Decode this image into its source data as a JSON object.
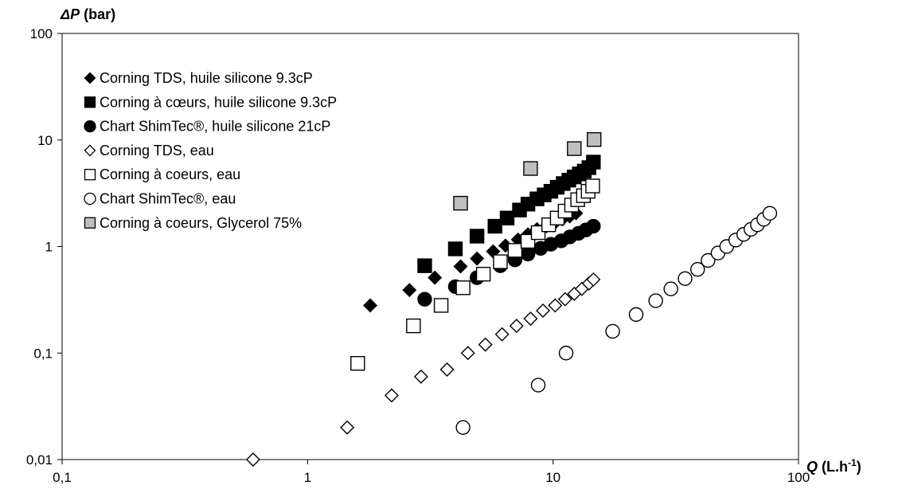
{
  "chart_data": {
    "type": "scatter",
    "title": "",
    "xlabel": {
      "symbol": "Q",
      "unit_main": " (L.h",
      "unit_sup": "-1",
      "unit_end": ")"
    },
    "ylabel": {
      "symbol": "ΔP",
      "unit": " (bar)"
    },
    "xscale": "log",
    "yscale": "log",
    "xlim": [
      0.1,
      100
    ],
    "ylim": [
      0.01,
      100
    ],
    "x_ticks": [
      {
        "v": 0.1,
        "label": "0,1"
      },
      {
        "v": 1,
        "label": "1"
      },
      {
        "v": 10,
        "label": "10"
      },
      {
        "v": 100,
        "label": "100"
      }
    ],
    "y_ticks": [
      {
        "v": 0.01,
        "label": "0,01"
      },
      {
        "v": 0.1,
        "label": "0,1"
      },
      {
        "v": 1,
        "label": "1"
      },
      {
        "v": 10,
        "label": "10"
      },
      {
        "v": 100,
        "label": "100"
      }
    ],
    "grid": false,
    "legend_position": "top-left",
    "series": [
      {
        "name": "Corning TDS, huile silicone 9.3cP",
        "marker": "diamond",
        "fill": "#000000",
        "stroke": "#000000",
        "x": [
          1.8,
          2.6,
          3.3,
          4.2,
          4.9,
          5.7,
          6.4,
          7.2,
          7.9,
          8.6,
          9.4,
          10.2,
          10.9,
          11.7,
          12.4
        ],
        "y": [
          0.28,
          0.39,
          0.51,
          0.65,
          0.77,
          0.9,
          1.02,
          1.16,
          1.3,
          1.45,
          1.55,
          1.68,
          1.8,
          1.92,
          2.05
        ]
      },
      {
        "name": "Corning à cœurs, huile silicone 9.3cP",
        "marker": "square",
        "fill": "#000000",
        "stroke": "#000000",
        "x": [
          3.0,
          4.0,
          4.9,
          5.8,
          6.5,
          7.3,
          7.9,
          8.6,
          9.2,
          9.8,
          10.4,
          11.0,
          11.6,
          12.2,
          12.8,
          13.4,
          14.0,
          14.6
        ],
        "y": [
          0.66,
          0.95,
          1.25,
          1.55,
          1.85,
          2.2,
          2.5,
          2.8,
          3.05,
          3.3,
          3.6,
          3.9,
          4.2,
          4.5,
          4.8,
          5.1,
          5.5,
          6.2
        ]
      },
      {
        "name": "Chart ShimTec®, huile silicone 21cP",
        "marker": "circle",
        "fill": "#000000",
        "stroke": "#000000",
        "x": [
          3.0,
          4.0,
          4.9,
          6.1,
          7.0,
          7.9,
          8.9,
          9.8,
          10.8,
          11.7,
          12.7,
          13.6,
          14.6
        ],
        "y": [
          0.32,
          0.42,
          0.51,
          0.66,
          0.75,
          0.85,
          0.96,
          1.05,
          1.13,
          1.23,
          1.33,
          1.43,
          1.55
        ]
      },
      {
        "name": "Corning TDS, eau",
        "marker": "diamond",
        "fill": "#ffffff",
        "stroke": "#000000",
        "x": [
          0.6,
          1.45,
          2.2,
          2.9,
          3.7,
          4.5,
          5.3,
          6.2,
          7.1,
          8.1,
          9.1,
          10.2,
          11.2,
          12.2,
          13.1,
          14.0,
          14.6
        ],
        "y": [
          0.01,
          0.02,
          0.04,
          0.06,
          0.07,
          0.1,
          0.12,
          0.15,
          0.18,
          0.21,
          0.25,
          0.28,
          0.32,
          0.36,
          0.4,
          0.45,
          0.49
        ]
      },
      {
        "name": "Corning à coeurs, eau",
        "marker": "square",
        "fill": "#ffffff",
        "stroke": "#000000",
        "x": [
          1.6,
          2.7,
          3.5,
          4.3,
          5.2,
          6.1,
          7.0,
          7.9,
          8.7,
          9.6,
          10.4,
          11.2,
          11.9,
          12.6,
          13.3,
          13.9,
          14.5
        ],
        "y": [
          0.08,
          0.18,
          0.28,
          0.41,
          0.55,
          0.72,
          0.92,
          1.12,
          1.35,
          1.6,
          1.85,
          2.15,
          2.45,
          2.75,
          3.0,
          3.3,
          3.7
        ]
      },
      {
        "name": "Chart ShimTec®, eau",
        "marker": "circle",
        "fill": "#ffffff",
        "stroke": "#000000",
        "x": [
          4.3,
          8.7,
          11.3,
          17.5,
          21.8,
          26.2,
          30.2,
          34.5,
          38.8,
          42.8,
          47.0,
          51.0,
          55.5,
          59.8,
          64.0,
          68.0,
          72.2,
          76.4
        ],
        "y": [
          0.02,
          0.05,
          0.1,
          0.16,
          0.23,
          0.31,
          0.4,
          0.5,
          0.61,
          0.74,
          0.87,
          1.0,
          1.15,
          1.3,
          1.45,
          1.6,
          1.8,
          2.05
        ]
      },
      {
        "name": "Corning à coeurs, Glycerol 75%",
        "marker": "square",
        "fill": "#bfbfbf",
        "stroke": "#000000",
        "x": [
          4.2,
          8.1,
          12.2,
          14.7
        ],
        "y": [
          2.55,
          5.4,
          8.3,
          10.1
        ]
      }
    ]
  }
}
